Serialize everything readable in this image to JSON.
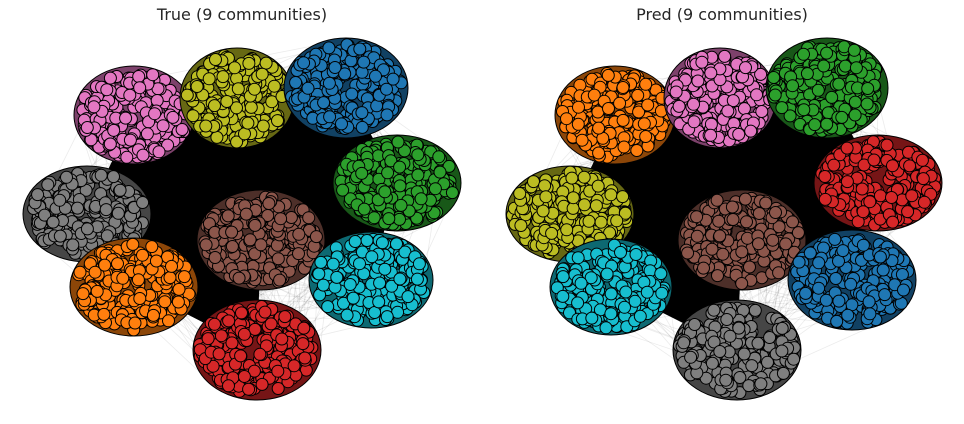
{
  "chart_data": [
    {
      "type": "network",
      "title": "True (9 communities)",
      "communities": [
        {
          "color": "#e377c2",
          "color_name": "pink"
        },
        {
          "color": "#bcbd22",
          "color_name": "olive"
        },
        {
          "color": "#1f77b4",
          "color_name": "blue"
        },
        {
          "color": "#2ca02c",
          "color_name": "green"
        },
        {
          "color": "#7f7f7f",
          "color_name": "gray"
        },
        {
          "color": "#8c564b",
          "color_name": "brown"
        },
        {
          "color": "#17becf",
          "color_name": "cyan"
        },
        {
          "color": "#ff7f0e",
          "color_name": "orange"
        },
        {
          "color": "#d62728",
          "color_name": "red"
        }
      ]
    },
    {
      "type": "network",
      "title": "Pred (9 communities)",
      "communities": [
        {
          "color": "#ff7f0e",
          "color_name": "orange"
        },
        {
          "color": "#e377c2",
          "color_name": "pink"
        },
        {
          "color": "#2ca02c",
          "color_name": "green"
        },
        {
          "color": "#bcbd22",
          "color_name": "olive"
        },
        {
          "color": "#d62728",
          "color_name": "red"
        },
        {
          "color": "#8c564b",
          "color_name": "brown"
        },
        {
          "color": "#17becf",
          "color_name": "cyan"
        },
        {
          "color": "#1f77b4",
          "color_name": "blue"
        },
        {
          "color": "#7f7f7f",
          "color_name": "gray"
        }
      ]
    }
  ]
}
